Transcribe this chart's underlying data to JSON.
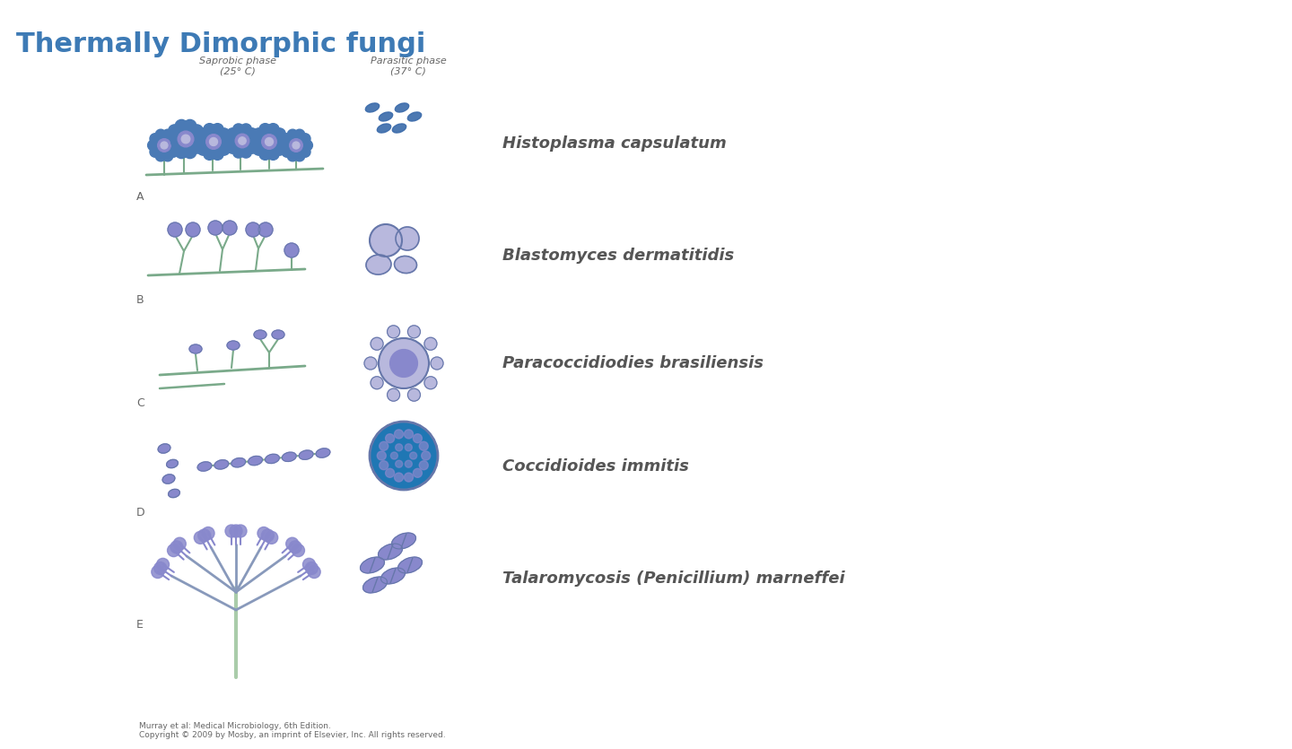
{
  "title": "Thermally Dimorphic fungi",
  "title_color": "#3d7ab5",
  "title_fontsize": 22,
  "header_saprophic": "Saprobic phase\n(25° C)",
  "header_parasitic": "Parasitic phase\n(37° C)",
  "header_color": "#666666",
  "header_fontsize": 8,
  "species": [
    "Histoplasma capsulatum",
    "Blastomyces dermatitidis",
    "Paracoccidiodies brasiliensis",
    "Coccidioides immitis",
    "Talaromycosis (Penicillium) marneffei"
  ],
  "species_fontsize": 13,
  "species_color": "#555555",
  "row_labels": [
    "A",
    "B",
    "C",
    "D",
    "E"
  ],
  "row_label_fontsize": 9,
  "row_label_color": "#666666",
  "footer_line1": "Murray et al: Medical Microbiology, 6th Edition.",
  "footer_line2": "Copyright © 2009 by Mosby, an imprint of Elsevier, Inc. All rights reserved.",
  "footer_fontsize": 6.5,
  "footer_color": "#666666",
  "bg_color": "#ffffff",
  "hyphae_color": "#7aaa8a",
  "spore_blue": "#4a7ab5",
  "spore_purple": "#8888cc",
  "spore_center": "#b8b8dd",
  "yeast_color": "#99aacc",
  "yeast_outline": "#6677aa",
  "pill_blue": "#3a6aaa",
  "penicillium_color": "#8899bb"
}
